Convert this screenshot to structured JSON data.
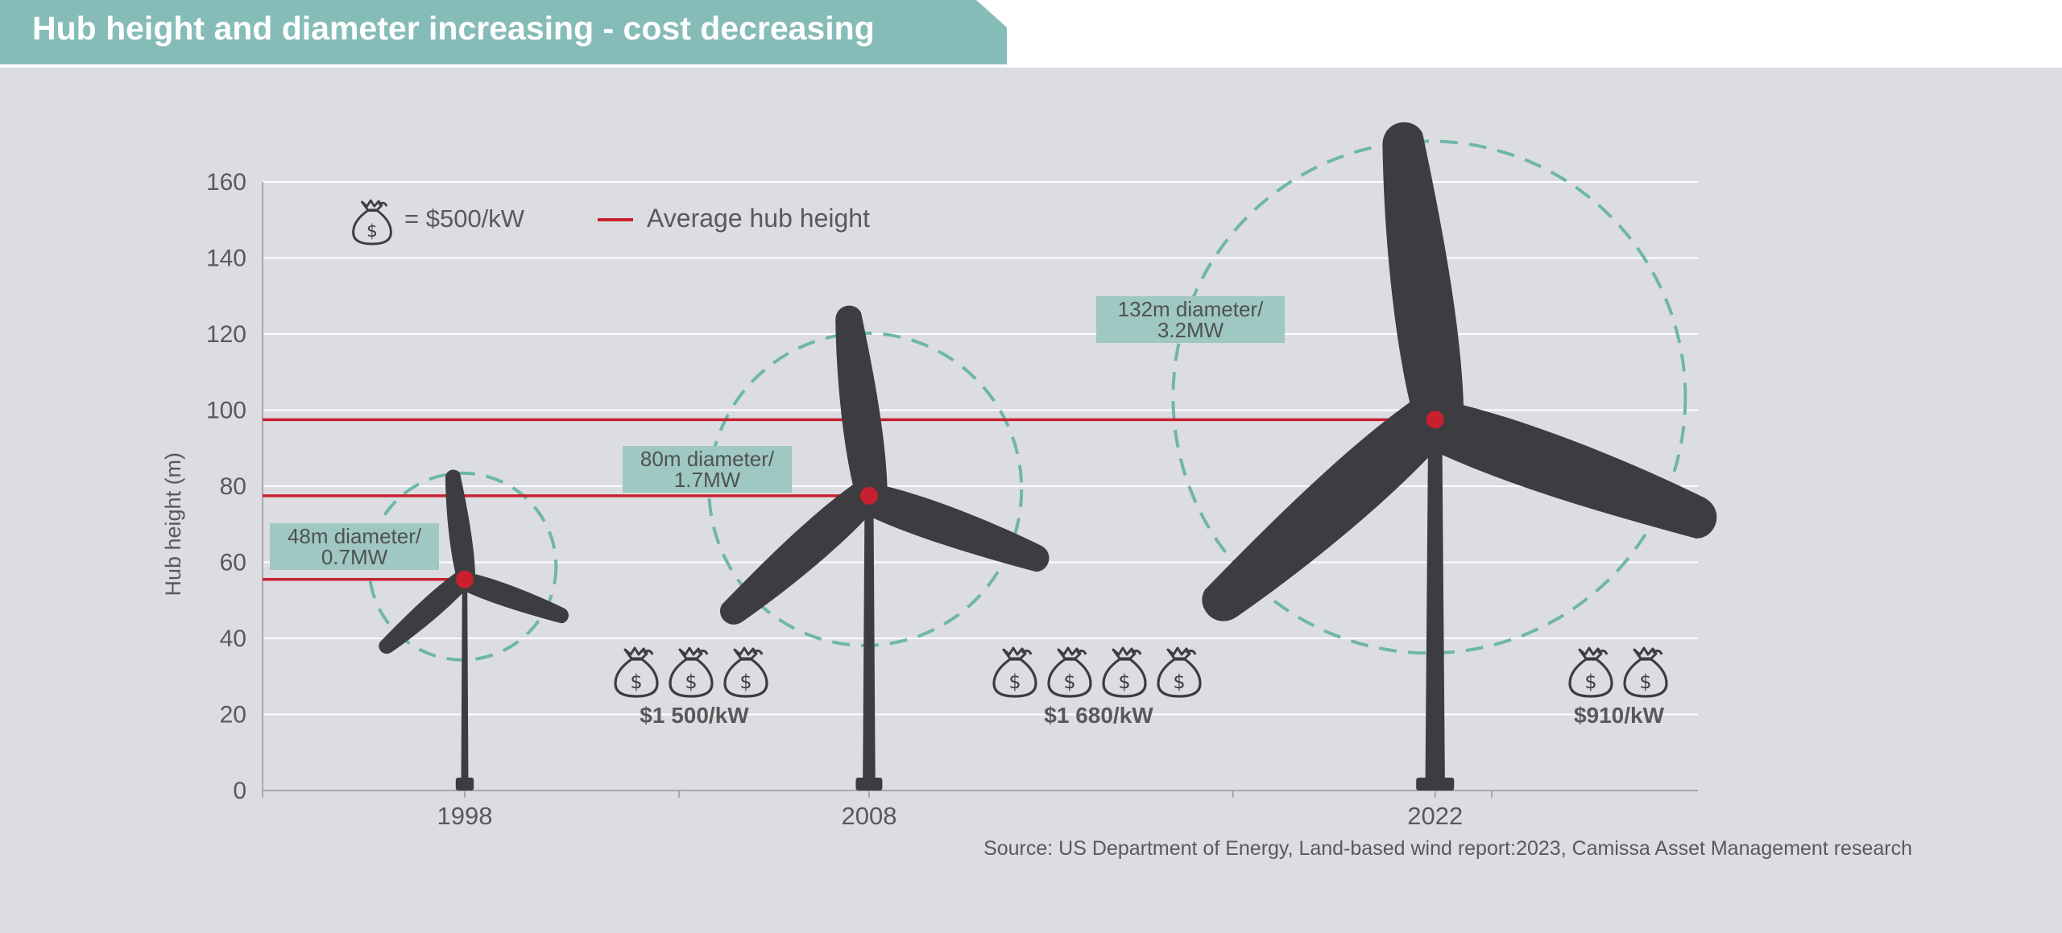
{
  "title": "Hub height and diameter increasing - cost decreasing",
  "source": "Source: US Department of Energy, Land-based wind report:2023, Camissa Asset Management research",
  "legend": {
    "money_unit": "= $500/kW",
    "hub_line": "Average hub height",
    "money_icon": "money-bag-icon"
  },
  "chart_data": {
    "type": "scatter",
    "ylabel": "Hub height  (m)",
    "xlabel": "",
    "ylim": [
      0,
      160
    ],
    "yticks": [
      0,
      20,
      40,
      60,
      80,
      100,
      120,
      140,
      160
    ],
    "xticks": [
      1998,
      2008,
      2022
    ],
    "grid": true,
    "legend_position": "top-left",
    "colors": {
      "hub_line": "#c8202f",
      "turbine": "#3d3c41",
      "rotor_circle": "#6fb6aa",
      "label_box": "#9ec8c1",
      "axis_text": "#58595b"
    },
    "series": [
      {
        "name": "Average hub height",
        "points": [
          {
            "year": 1998,
            "hub_height": 55.5,
            "diameter_label": "48m diameter/",
            "capacity_label": "0.7MW",
            "cost_label": "$1 500/kW",
            "cost_per_kw": 1500,
            "money_bags": 3
          },
          {
            "year": 2008,
            "hub_height": 77.5,
            "diameter_label": "80m diameter/",
            "capacity_label": "1.7MW",
            "cost_label": "$1 680/kW",
            "cost_per_kw": 1680,
            "money_bags": 4
          },
          {
            "year": 2022,
            "hub_height": 97.5,
            "diameter_label": "132m diameter/",
            "capacity_label": "3.2MW",
            "cost_label": "$910/kW",
            "cost_per_kw": 910,
            "money_bags": 2
          }
        ]
      }
    ]
  }
}
